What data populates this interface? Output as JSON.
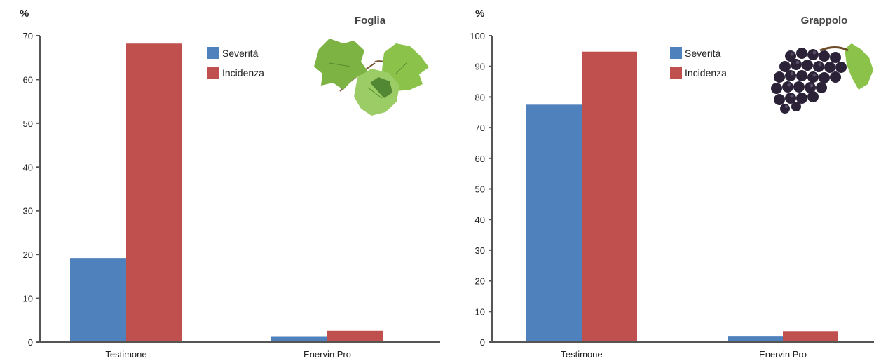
{
  "colors": {
    "severita": "#4f81bd",
    "incidenza": "#c0504d",
    "axis": "#555555"
  },
  "chart_data": [
    {
      "type": "bar",
      "title": "Foglia",
      "ylabel": "%",
      "categories": [
        "Testimone",
        "Enervin Pro"
      ],
      "series": [
        {
          "name": "Severità",
          "values": [
            19.2,
            1.2
          ]
        },
        {
          "name": "Incidenza",
          "values": [
            68.2,
            2.6
          ]
        }
      ],
      "ylim": [
        0,
        70
      ],
      "yticks": [
        0,
        10,
        20,
        30,
        40,
        50,
        60,
        70
      ],
      "grid": false,
      "legend_position": "top-center",
      "image": "grape-leaf-icon"
    },
    {
      "type": "bar",
      "title": "Grappolo",
      "ylabel": "%",
      "categories": [
        "Testimone",
        "Enervin Pro"
      ],
      "series": [
        {
          "name": "Severità",
          "values": [
            77.5,
            1.8
          ]
        },
        {
          "name": "Incidenza",
          "values": [
            94.8,
            3.6
          ]
        }
      ],
      "ylim": [
        0,
        100
      ],
      "yticks": [
        0,
        10,
        20,
        30,
        40,
        50,
        60,
        70,
        80,
        90,
        100
      ],
      "grid": false,
      "legend_position": "top-center",
      "image": "grape-bunch-icon"
    }
  ]
}
